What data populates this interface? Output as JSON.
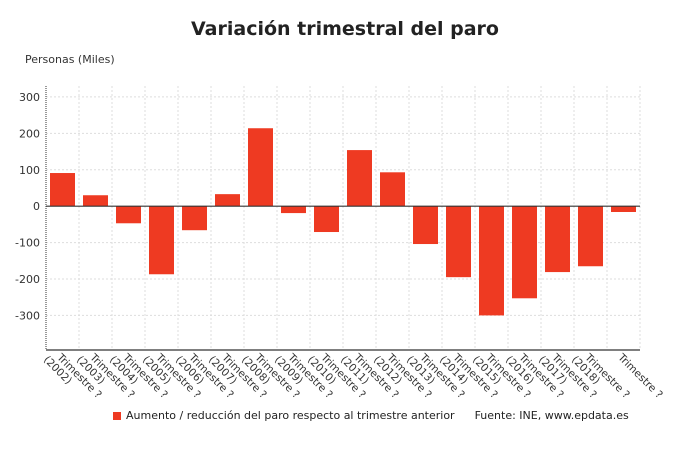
{
  "chart_data": {
    "type": "bar",
    "title": "Variación trimestral del paro",
    "ylabel": "Personas (Miles)",
    "xlabel": "",
    "categories": [
      {
        "line1": "Trimestre ?",
        "line2": "(2002)"
      },
      {
        "line1": "Trimestre ?",
        "line2": "(2003)"
      },
      {
        "line1": "Trimestre ?",
        "line2": "(2004)"
      },
      {
        "line1": "Trimestre ?",
        "line2": "(2005)"
      },
      {
        "line1": "Trimestre ?",
        "line2": "(2006)"
      },
      {
        "line1": "Trimestre ?",
        "line2": "(2007)"
      },
      {
        "line1": "Trimestre ?",
        "line2": "(2008)"
      },
      {
        "line1": "Trimestre ?",
        "line2": "(2009)"
      },
      {
        "line1": "Trimestre ?",
        "line2": "(2010)"
      },
      {
        "line1": "Trimestre ?",
        "line2": "(2011)"
      },
      {
        "line1": "Trimestre ?",
        "line2": "(2012)"
      },
      {
        "line1": "Trimestre ?",
        "line2": "(2013)"
      },
      {
        "line1": "Trimestre ?",
        "line2": "(2014)"
      },
      {
        "line1": "Trimestre ?",
        "line2": "(2015)"
      },
      {
        "line1": "Trimestre ?",
        "line2": "(2016)"
      },
      {
        "line1": "Trimestre ?",
        "line2": "(2017)"
      },
      {
        "line1": "Trimestre ?",
        "line2": "(2018)"
      },
      {
        "line1": "Trimestre ?",
        "line2": ""
      }
    ],
    "series": [
      {
        "name": "Aumento / reducción del paro respecto al trimestre anterior",
        "color": "#ee3a22",
        "values": [
          91,
          30,
          -47,
          -187,
          -66,
          33,
          214,
          -19,
          -71,
          154,
          93,
          -104,
          -195,
          -300,
          -253,
          -181,
          -165,
          -16
        ]
      }
    ],
    "ylim": [
      -395,
      330
    ],
    "yticks": [
      300,
      200,
      100,
      0,
      -100,
      -200,
      -300
    ],
    "grid": true,
    "legend": "bottom",
    "source": "Fuente: INE, www.epdata.es"
  }
}
